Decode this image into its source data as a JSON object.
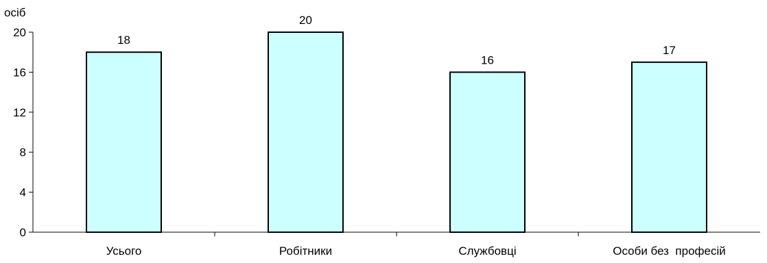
{
  "chart_data": {
    "type": "bar",
    "title": "",
    "xlabel": "",
    "ylabel": "осіб",
    "categories": [
      "Усього",
      "Робітники",
      "Службовці",
      "Особи без  професій"
    ],
    "values": [
      18,
      20,
      16,
      17
    ],
    "data_labels": [
      "18",
      "20",
      "16",
      "17"
    ],
    "ylim": [
      0,
      20
    ],
    "yticks": [
      0,
      4,
      8,
      12,
      16,
      20
    ],
    "ytick_labels": [
      "0",
      "4",
      "8",
      "12",
      "16",
      "20"
    ],
    "grid": false,
    "legend": "none",
    "colors": {
      "bar_fill": "#ccffff",
      "bar_stroke": "#000000",
      "axis": "#000000"
    }
  }
}
